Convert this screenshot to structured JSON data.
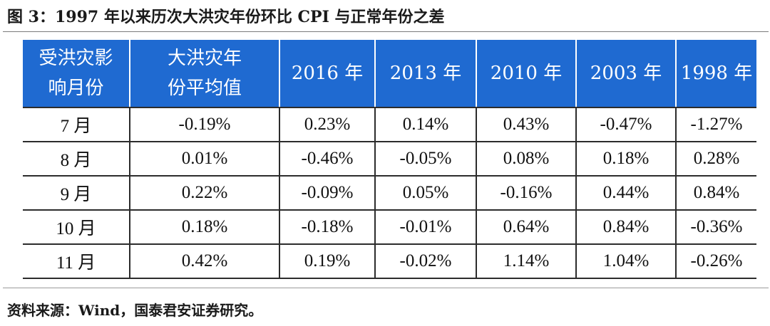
{
  "title": "图 3：1997 年以来历次大洪灾年份环比 CPI 与正常年份之差",
  "table": {
    "header": {
      "col0_line1": "受洪灾影",
      "col0_line2": "响月份",
      "col1_line1": "大洪灾年",
      "col1_line2": "份平均值",
      "years": [
        "2016 年",
        "2013 年",
        "2010 年",
        "2003 年",
        "1998 年"
      ]
    },
    "rows": [
      {
        "month": "7 月",
        "cells": [
          "-0.19%",
          "0.23%",
          "0.14%",
          "0.43%",
          "-0.47%",
          "-1.27%"
        ]
      },
      {
        "month": "8 月",
        "cells": [
          "0.01%",
          "-0.46%",
          "-0.05%",
          "0.08%",
          "0.18%",
          "0.28%"
        ]
      },
      {
        "month": "9 月",
        "cells": [
          "0.22%",
          "-0.09%",
          "0.05%",
          "-0.16%",
          "0.44%",
          "0.84%"
        ]
      },
      {
        "month": "10 月",
        "cells": [
          "0.18%",
          "-0.18%",
          "-0.01%",
          "0.64%",
          "0.84%",
          "-0.36%"
        ]
      },
      {
        "month": "11 月",
        "cells": [
          "0.42%",
          "0.19%",
          "-0.02%",
          "1.14%",
          "1.04%",
          "-0.26%"
        ]
      }
    ]
  },
  "source": "资料来源：Wind，国泰君安证券研究。",
  "colors": {
    "header_bg": "#1f6ad1",
    "header_text": "#ffffff",
    "border": "#2c2c2c"
  }
}
